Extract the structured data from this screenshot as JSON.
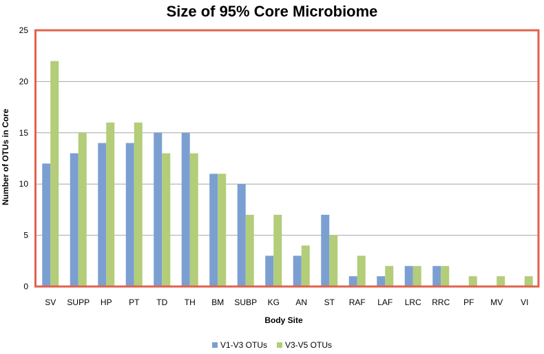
{
  "chart_data": {
    "type": "bar",
    "title": "Size of 95% Core Microbiome",
    "xlabel": "Body Site",
    "ylabel": "Number of OTUs in Core",
    "ylim": [
      0,
      25
    ],
    "yticks": [
      0,
      5,
      10,
      15,
      20,
      25
    ],
    "grid": true,
    "legend_position": "bottom",
    "categories": [
      "SV",
      "SUPP",
      "HP",
      "PT",
      "TD",
      "TH",
      "BM",
      "SUBP",
      "KG",
      "AN",
      "ST",
      "RAF",
      "LAF",
      "LRC",
      "RRC",
      "PF",
      "MV",
      "VI"
    ],
    "series": [
      {
        "name": "V1-V3 OTUs",
        "color": "#7b9fd1",
        "values": [
          12,
          13,
          14,
          14,
          15,
          15,
          11,
          10,
          3,
          3,
          7,
          1,
          1,
          2,
          2,
          0,
          0,
          0
        ]
      },
      {
        "name": "V3-V5 OTUs",
        "color": "#b3cd79",
        "values": [
          22,
          15,
          16,
          16,
          13,
          13,
          11,
          7,
          7,
          4,
          5,
          3,
          2,
          2,
          2,
          1,
          1,
          1
        ]
      }
    ],
    "plot_border_color": "#e0624b",
    "grid_color": "#a6a6a6"
  }
}
